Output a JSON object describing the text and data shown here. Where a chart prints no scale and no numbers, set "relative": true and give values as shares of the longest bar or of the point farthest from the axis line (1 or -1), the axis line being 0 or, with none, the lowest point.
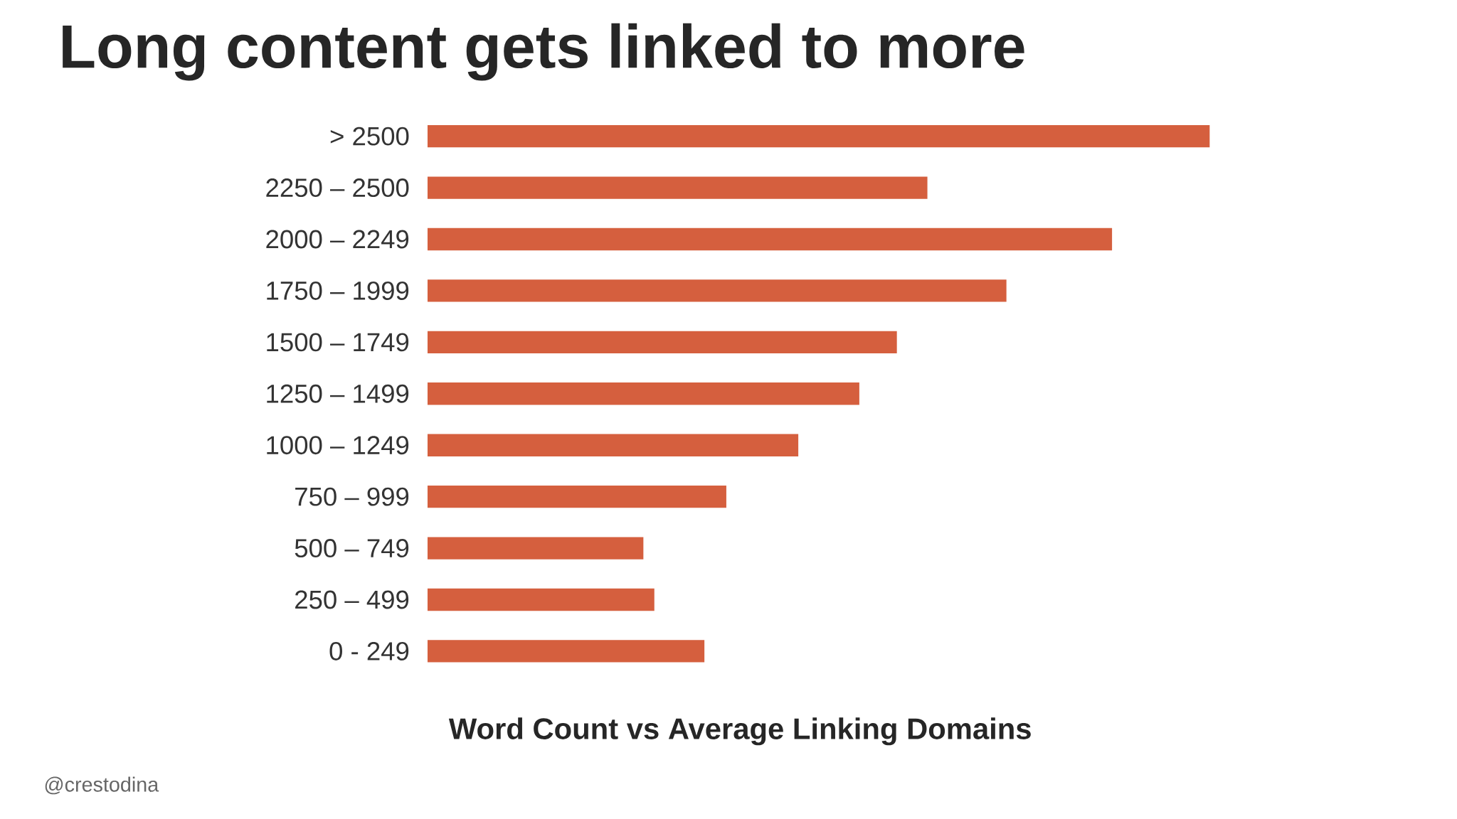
{
  "chart_data": {
    "type": "bar",
    "orientation": "horizontal",
    "relative": true,
    "title": "Long content gets linked to more",
    "xlabel": "Word Count vs Average Linking Domains",
    "categories": [
      "> 2500",
      "2250 – 2500",
      "2000 – 2249",
      "1750 – 1999",
      "1500 – 1749",
      "1250 – 1499",
      "1000 – 1249",
      "750 – 999",
      "500 – 749",
      "250 – 499",
      "0 - 249"
    ],
    "values": [
      1,
      0.639,
      0.875,
      0.74,
      0.6,
      0.552,
      0.474,
      0.382,
      0.276,
      0.29,
      0.354
    ],
    "color": "#d55f3e",
    "annotations": [
      "@crestodina"
    ]
  }
}
